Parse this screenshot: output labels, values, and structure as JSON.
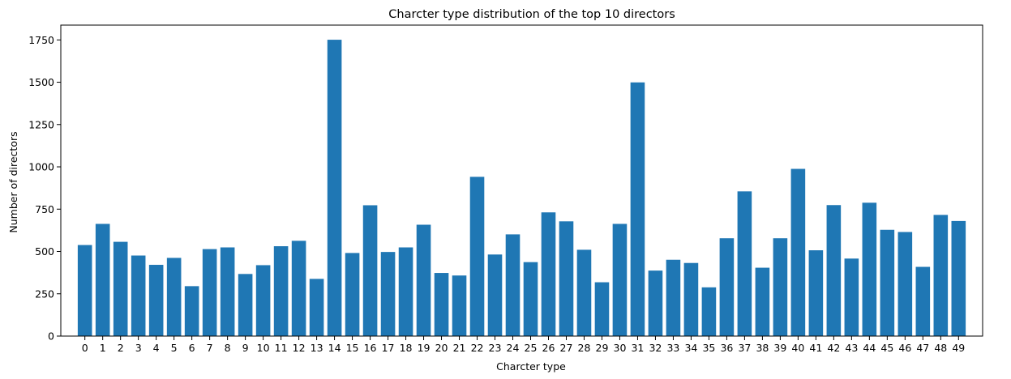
{
  "chart_data": {
    "type": "bar",
    "title": "Charcter type distribution of the top 10 directors",
    "xlabel": "Charcter type",
    "ylabel": "Number of directors",
    "categories": [
      "0",
      "1",
      "2",
      "3",
      "4",
      "5",
      "6",
      "7",
      "8",
      "9",
      "10",
      "11",
      "12",
      "13",
      "14",
      "15",
      "16",
      "17",
      "18",
      "19",
      "20",
      "21",
      "22",
      "23",
      "24",
      "25",
      "26",
      "27",
      "28",
      "29",
      "30",
      "31",
      "32",
      "33",
      "34",
      "35",
      "36",
      "37",
      "38",
      "39",
      "40",
      "41",
      "42",
      "43",
      "44",
      "45",
      "46",
      "47",
      "48",
      "49"
    ],
    "values": [
      538,
      663,
      557,
      476,
      421,
      462,
      295,
      514,
      524,
      367,
      419,
      531,
      563,
      338,
      1751,
      491,
      773,
      497,
      524,
      658,
      373,
      358,
      941,
      482,
      601,
      437,
      731,
      678,
      510,
      318,
      663,
      1499,
      387,
      451,
      432,
      288,
      578,
      855,
      404,
      578,
      988,
      507,
      774,
      458,
      788,
      628,
      615,
      409,
      716,
      680
    ],
    "ylim": [
      0,
      1837.5
    ],
    "yticks": [
      0,
      250,
      500,
      750,
      1000,
      1250,
      1500,
      1750
    ],
    "bar_color": "#1f77b4",
    "grid": false,
    "legend": "none"
  }
}
